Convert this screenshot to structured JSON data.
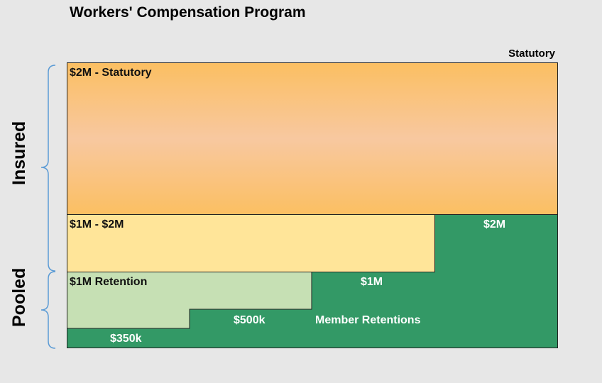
{
  "title": "Workers' Compensation Program",
  "top_right_label": "Statutory",
  "side_labels": {
    "insured": "Insured",
    "pooled": "Pooled"
  },
  "layers": {
    "statutory": "$2M - Statutory",
    "one_to_two": "$1M - $2M",
    "retention": "$1M Retention"
  },
  "member_retentions": {
    "label": "Member Retentions",
    "step_350k": "$350k",
    "step_500k": "$500k",
    "step_1m": "$1M",
    "step_2m": "$2M"
  },
  "colors": {
    "orange": "#fbbf62",
    "orange_mid": "#f8c8a0",
    "yellow": "#ffe599",
    "light_green": "#c6e0b4",
    "green": "#339966",
    "bracket": "#5b9bd5"
  }
}
